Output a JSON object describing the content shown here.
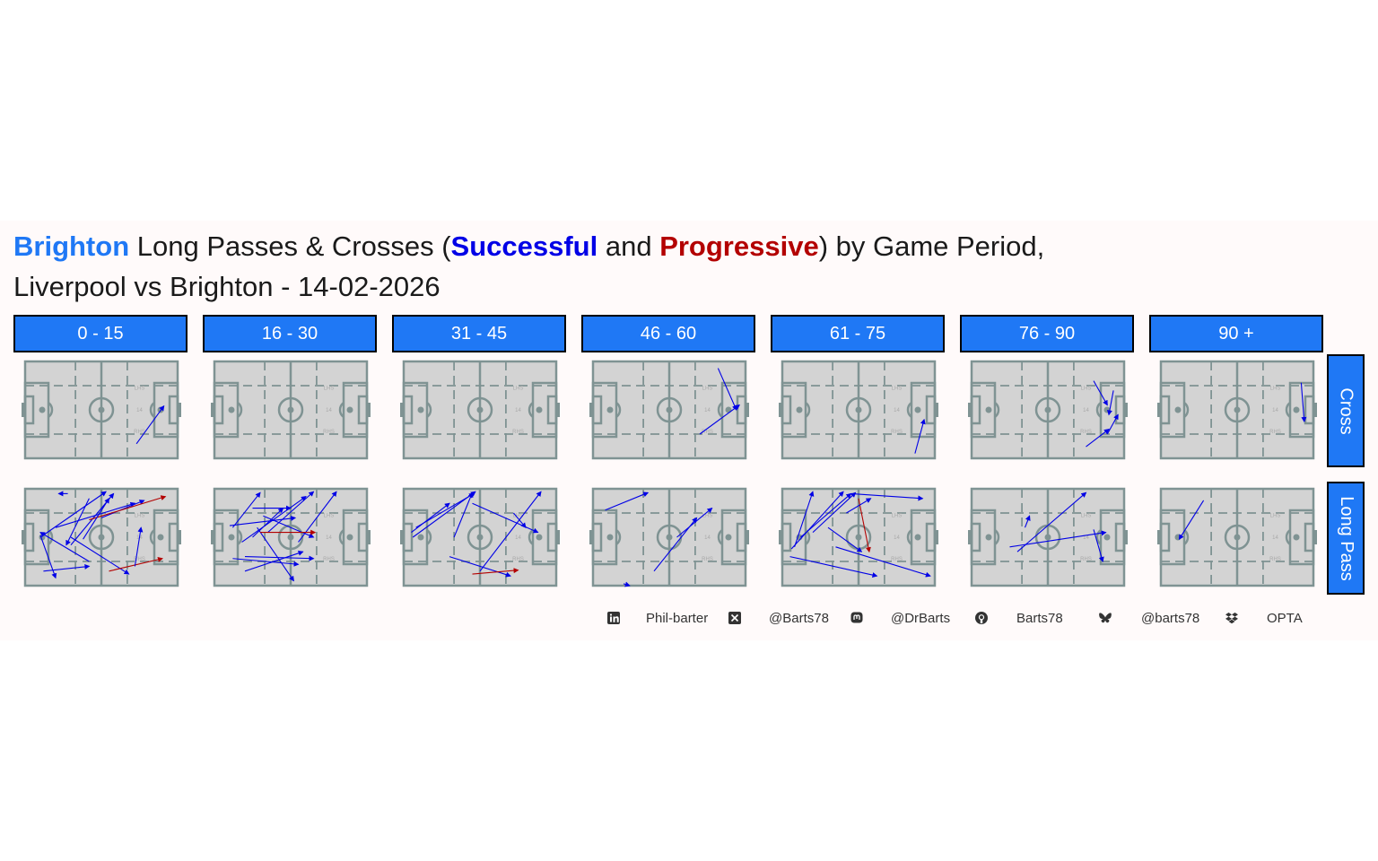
{
  "title": {
    "team": "Brighton",
    "part1": " Long Passes & Crosses (",
    "successful": "Successful",
    "part2": " and ",
    "progressive": "Progressive",
    "part3": ") by Game Period,",
    "line2": "Liverpool vs Brighton - 14-02-2026"
  },
  "colors": {
    "team": "#1f78f5",
    "successful": "#0000e6",
    "progressive": "#b30000",
    "strip": "#1f78f5",
    "pitch": "#d3d3d3",
    "pitch_lines": "#7f9393"
  },
  "pitch_labels": {
    "lhs": "LHS",
    "rhs": "RHS",
    "center": "14"
  },
  "periods": [
    "0 - 15",
    "16 - 30",
    "31 - 45",
    "46 - 60",
    "61 - 75",
    "76 - 90",
    "90 +"
  ],
  "types": [
    "Cross",
    "Long Pass"
  ],
  "footer": [
    {
      "icon": "linkedin-icon",
      "text": "Phil-barter"
    },
    {
      "icon": "x-icon",
      "text": "@Barts78"
    },
    {
      "icon": "mastodon-icon",
      "text": "@DrBarts"
    },
    {
      "icon": "github-icon",
      "text": "Barts78"
    },
    {
      "icon": "bluesky-icon",
      "text": "@barts78"
    },
    {
      "icon": "dropbox-icon",
      "text": "OPTA"
    }
  ],
  "chart_data": {
    "type": "scatter",
    "description_units": "pitch coordinates 0-100 (x: defending goal to attacking goal, y: bottom to top)",
    "xlim": [
      0,
      100
    ],
    "ylim": [
      0,
      100
    ],
    "facets": {
      "Cross": {
        "0 - 15": [
          {
            "x": 73,
            "y": 15,
            "xend": 91,
            "yend": 54,
            "progressive": false
          }
        ],
        "16 - 30": [],
        "31 - 45": [],
        "46 - 60": [
          {
            "x": 82,
            "y": 93,
            "xend": 94,
            "yend": 50,
            "progressive": false
          },
          {
            "x": 70,
            "y": 25,
            "xend": 96,
            "yend": 55,
            "progressive": false
          }
        ],
        "61 - 75": [
          {
            "x": 87,
            "y": 5,
            "xend": 93,
            "yend": 40,
            "progressive": false
          }
        ],
        "76 - 90": [
          {
            "x": 80,
            "y": 80,
            "xend": 89,
            "yend": 55,
            "progressive": false
          },
          {
            "x": 93,
            "y": 70,
            "xend": 90,
            "yend": 45,
            "progressive": false
          },
          {
            "x": 75,
            "y": 12,
            "xend": 90,
            "yend": 30,
            "progressive": false
          },
          {
            "x": 89,
            "y": 25,
            "xend": 96,
            "yend": 45,
            "progressive": false
          }
        ],
        "90 +": [
          {
            "x": 92,
            "y": 78,
            "xend": 94,
            "yend": 38,
            "progressive": false
          }
        ]
      },
      "Long Pass": {
        "0 - 15": [
          {
            "x": 28,
            "y": 95,
            "xend": 22,
            "yend": 95,
            "progressive": false
          },
          {
            "x": 10,
            "y": 50,
            "xend": 53,
            "yend": 97,
            "progressive": false
          },
          {
            "x": 42,
            "y": 90,
            "xend": 27,
            "yend": 42,
            "progressive": false
          },
          {
            "x": 30,
            "y": 42,
            "xend": 58,
            "yend": 95,
            "progressive": false
          },
          {
            "x": 50,
            "y": 70,
            "xend": 78,
            "yend": 88,
            "progressive": false
          },
          {
            "x": 42,
            "y": 25,
            "xend": 10,
            "yend": 55,
            "progressive": false
          },
          {
            "x": 12,
            "y": 15,
            "xend": 42,
            "yend": 20,
            "progressive": false
          },
          {
            "x": 30,
            "y": 50,
            "xend": 68,
            "yend": 12,
            "progressive": false
          },
          {
            "x": 20,
            "y": 60,
            "xend": 72,
            "yend": 85,
            "progressive": false
          },
          {
            "x": 55,
            "y": 15,
            "xend": 90,
            "yend": 28,
            "progressive": true
          },
          {
            "x": 42,
            "y": 68,
            "xend": 92,
            "yend": 92,
            "progressive": true
          },
          {
            "x": 72,
            "y": 20,
            "xend": 76,
            "yend": 60,
            "progressive": false
          },
          {
            "x": 10,
            "y": 52,
            "xend": 20,
            "yend": 8,
            "progressive": false
          },
          {
            "x": 38,
            "y": 48,
            "xend": 55,
            "yend": 90,
            "progressive": false
          }
        ],
        "16 - 30": [
          {
            "x": 12,
            "y": 60,
            "xend": 30,
            "yend": 96,
            "progressive": false
          },
          {
            "x": 18,
            "y": 45,
            "xend": 60,
            "yend": 92,
            "progressive": false
          },
          {
            "x": 25,
            "y": 80,
            "xend": 50,
            "yend": 80,
            "progressive": false
          },
          {
            "x": 35,
            "y": 55,
            "xend": 65,
            "yend": 97,
            "progressive": false
          },
          {
            "x": 32,
            "y": 72,
            "xend": 65,
            "yend": 50,
            "progressive": false
          },
          {
            "x": 10,
            "y": 62,
            "xend": 53,
            "yend": 70,
            "progressive": false
          },
          {
            "x": 20,
            "y": 15,
            "xend": 58,
            "yend": 35,
            "progressive": false
          },
          {
            "x": 12,
            "y": 28,
            "xend": 55,
            "yend": 22,
            "progressive": false
          },
          {
            "x": 20,
            "y": 30,
            "xend": 65,
            "yend": 28,
            "progressive": false
          },
          {
            "x": 28,
            "y": 60,
            "xend": 52,
            "yend": 5,
            "progressive": false
          },
          {
            "x": 55,
            "y": 45,
            "xend": 80,
            "yend": 97,
            "progressive": false
          },
          {
            "x": 30,
            "y": 55,
            "xend": 66,
            "yend": 55,
            "progressive": true
          },
          {
            "x": 25,
            "y": 50,
            "xend": 45,
            "yend": 80,
            "progressive": false
          }
        ],
        "31 - 45": [
          {
            "x": 6,
            "y": 50,
            "xend": 47,
            "yend": 97,
            "progressive": false
          },
          {
            "x": 8,
            "y": 60,
            "xend": 46,
            "yend": 95,
            "progressive": false
          },
          {
            "x": 33,
            "y": 50,
            "xend": 45,
            "yend": 96,
            "progressive": false
          },
          {
            "x": 45,
            "y": 85,
            "xend": 88,
            "yend": 55,
            "progressive": false
          },
          {
            "x": 50,
            "y": 15,
            "xend": 90,
            "yend": 97,
            "progressive": false
          },
          {
            "x": 30,
            "y": 30,
            "xend": 70,
            "yend": 10,
            "progressive": false
          },
          {
            "x": 45,
            "y": 12,
            "xend": 75,
            "yend": 16,
            "progressive": true
          },
          {
            "x": 72,
            "y": 75,
            "xend": 80,
            "yend": 60,
            "progressive": false
          },
          {
            "x": 5,
            "y": 55,
            "xend": 30,
            "yend": 85,
            "progressive": false
          }
        ],
        "46 - 60": [
          {
            "x": 8,
            "y": 78,
            "xend": 36,
            "yend": 96,
            "progressive": false
          },
          {
            "x": 40,
            "y": 15,
            "xend": 68,
            "yend": 70,
            "progressive": false
          },
          {
            "x": 55,
            "y": 50,
            "xend": 78,
            "yend": 80,
            "progressive": false
          },
          {
            "x": 20,
            "y": 2,
            "xend": 24,
            "yend": 0,
            "progressive": false
          }
        ],
        "61 - 75": [
          {
            "x": 8,
            "y": 40,
            "xend": 20,
            "yend": 97,
            "progressive": false
          },
          {
            "x": 6,
            "y": 38,
            "xend": 40,
            "yend": 97,
            "progressive": false
          },
          {
            "x": 12,
            "y": 50,
            "xend": 45,
            "yend": 95,
            "progressive": false
          },
          {
            "x": 45,
            "y": 95,
            "xend": 92,
            "yend": 90,
            "progressive": false
          },
          {
            "x": 30,
            "y": 60,
            "xend": 52,
            "yend": 35,
            "progressive": false
          },
          {
            "x": 50,
            "y": 90,
            "xend": 57,
            "yend": 35,
            "progressive": true
          },
          {
            "x": 5,
            "y": 30,
            "xend": 62,
            "yend": 10,
            "progressive": false
          },
          {
            "x": 35,
            "y": 40,
            "xend": 97,
            "yend": 10,
            "progressive": false
          },
          {
            "x": 20,
            "y": 55,
            "xend": 48,
            "yend": 96,
            "progressive": false
          },
          {
            "x": 42,
            "y": 75,
            "xend": 58,
            "yend": 90,
            "progressive": false
          }
        ],
        "76 - 90": [
          {
            "x": 35,
            "y": 60,
            "xend": 38,
            "yend": 72,
            "progressive": false
          },
          {
            "x": 30,
            "y": 35,
            "xend": 75,
            "yend": 96,
            "progressive": false
          },
          {
            "x": 25,
            "y": 40,
            "xend": 88,
            "yend": 55,
            "progressive": false
          },
          {
            "x": 80,
            "y": 58,
            "xend": 86,
            "yend": 25,
            "progressive": false
          }
        ],
        "90 +": [
          {
            "x": 28,
            "y": 88,
            "xend": 12,
            "yend": 48,
            "progressive": false
          }
        ]
      }
    }
  }
}
